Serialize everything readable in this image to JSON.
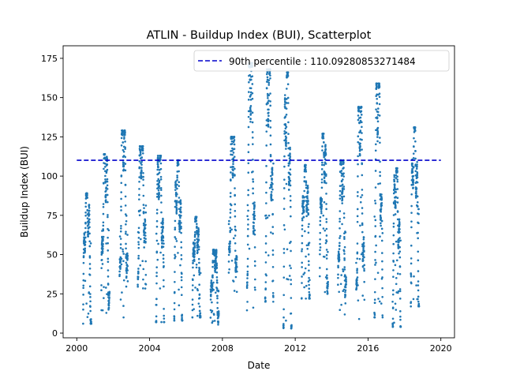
{
  "chart_data": {
    "type": "scatter",
    "title": "ATLIN - Buildup Index (BUI), Scatterplot",
    "xlabel": "Date",
    "ylabel": "Buildup Index (BUI)",
    "xlim": [
      1999.25,
      2020.75
    ],
    "ylim": [
      -3,
      183
    ],
    "x_ticks": [
      2000,
      2004,
      2008,
      2012,
      2016,
      2020
    ],
    "x_tick_labels": [
      "2000",
      "2004",
      "2008",
      "2012",
      "2016",
      "2020"
    ],
    "y_ticks": [
      0,
      25,
      50,
      75,
      100,
      125,
      150,
      175
    ],
    "y_tick_labels": [
      "0",
      "25",
      "50",
      "75",
      "100",
      "125",
      "150",
      "175"
    ],
    "grid": false,
    "legend_position": "top-right",
    "reference_line": {
      "label": "90th percentile : 110.09280853271484",
      "value": 110.09280853271484,
      "x_range": [
        2000,
        2020
      ],
      "color": "#0000cc",
      "style": "dashed"
    },
    "series_color": "#1f77b4",
    "seasons": [
      {
        "year": 2000,
        "start": 2000.35,
        "end": 2000.8,
        "peak": 89,
        "min": 6
      },
      {
        "year": 2001,
        "start": 2001.35,
        "end": 2001.8,
        "peak": 114,
        "min": 5
      },
      {
        "year": 2002,
        "start": 2002.35,
        "end": 2002.8,
        "peak": 129,
        "min": 10
      },
      {
        "year": 2003,
        "start": 2003.35,
        "end": 2003.8,
        "peak": 119,
        "min": 28
      },
      {
        "year": 2004,
        "start": 2004.35,
        "end": 2004.8,
        "peak": 113,
        "min": 7
      },
      {
        "year": 2005,
        "start": 2005.35,
        "end": 2005.8,
        "peak": 110,
        "min": 8
      },
      {
        "year": 2006,
        "start": 2006.35,
        "end": 2006.8,
        "peak": 74,
        "min": 10
      },
      {
        "year": 2007,
        "start": 2007.35,
        "end": 2007.8,
        "peak": 53,
        "min": 5
      },
      {
        "year": 2008,
        "start": 2008.35,
        "end": 2008.8,
        "peak": 125,
        "min": 17
      },
      {
        "year": 2009,
        "start": 2009.35,
        "end": 2009.8,
        "peak": 172,
        "min": 13
      },
      {
        "year": 2010,
        "start": 2010.35,
        "end": 2010.8,
        "peak": 168,
        "min": 20
      },
      {
        "year": 2011,
        "start": 2011.35,
        "end": 2011.8,
        "peak": 166,
        "min": 3
      },
      {
        "year": 2012,
        "start": 2012.35,
        "end": 2012.8,
        "peak": 107,
        "min": 22
      },
      {
        "year": 2013,
        "start": 2013.35,
        "end": 2013.8,
        "peak": 127,
        "min": 25
      },
      {
        "year": 2014,
        "start": 2014.35,
        "end": 2014.8,
        "peak": 110,
        "min": 9
      },
      {
        "year": 2015,
        "start": 2015.35,
        "end": 2015.8,
        "peak": 144,
        "min": 4
      },
      {
        "year": 2016,
        "start": 2016.35,
        "end": 2016.8,
        "peak": 159,
        "min": 10
      },
      {
        "year": 2017,
        "start": 2017.35,
        "end": 2017.8,
        "peak": 105,
        "min": 4
      },
      {
        "year": 2018,
        "start": 2018.35,
        "end": 2018.8,
        "peak": 131,
        "min": 17
      }
    ]
  }
}
